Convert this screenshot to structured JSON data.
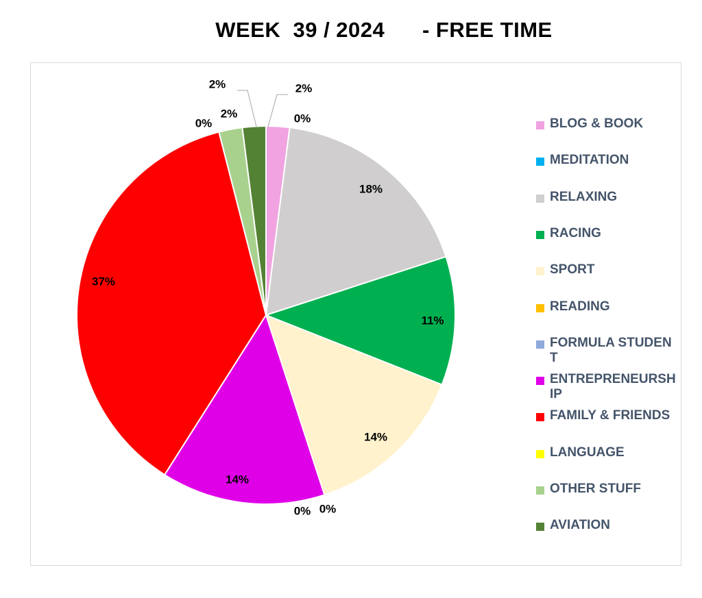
{
  "chart_data": {
    "type": "pie",
    "title": "WEEK  39 / 2024      - FREE TIME",
    "legend_position": "right",
    "slices": [
      {
        "name": "BLOG & BOOK",
        "value": 2,
        "label": "2%",
        "color": "#f0a3e0"
      },
      {
        "name": "MEDITATION",
        "value": 0,
        "label": "0%",
        "color": "#00b0f0"
      },
      {
        "name": "RELAXING",
        "value": 18,
        "label": "18%",
        "color": "#d0cece"
      },
      {
        "name": "RACING",
        "value": 11,
        "label": "11%",
        "color": "#00b050"
      },
      {
        "name": "SPORT",
        "value": 14,
        "label": "14%",
        "color": "#fff2cc"
      },
      {
        "name": "READING",
        "value": 0,
        "label": "0%",
        "color": "#ffc000"
      },
      {
        "name": "FORMULA STUDENT",
        "value": 0,
        "label": "0%",
        "color": "#8faadc"
      },
      {
        "name": "ENTREPRENEURSHIP",
        "value": 14,
        "label": "14%",
        "color": "#e000e8"
      },
      {
        "name": "FAMILY & FRIENDS",
        "value": 37,
        "label": "37%",
        "color": "#ff0000"
      },
      {
        "name": "LANGUAGE",
        "value": 0,
        "label": "0%",
        "color": "#ffff00"
      },
      {
        "name": "OTHER STUFF",
        "value": 2,
        "label": "2%",
        "color": "#a9d18e"
      },
      {
        "name": "AVIATION",
        "value": 2,
        "label": "2%",
        "color": "#548235"
      }
    ]
  }
}
